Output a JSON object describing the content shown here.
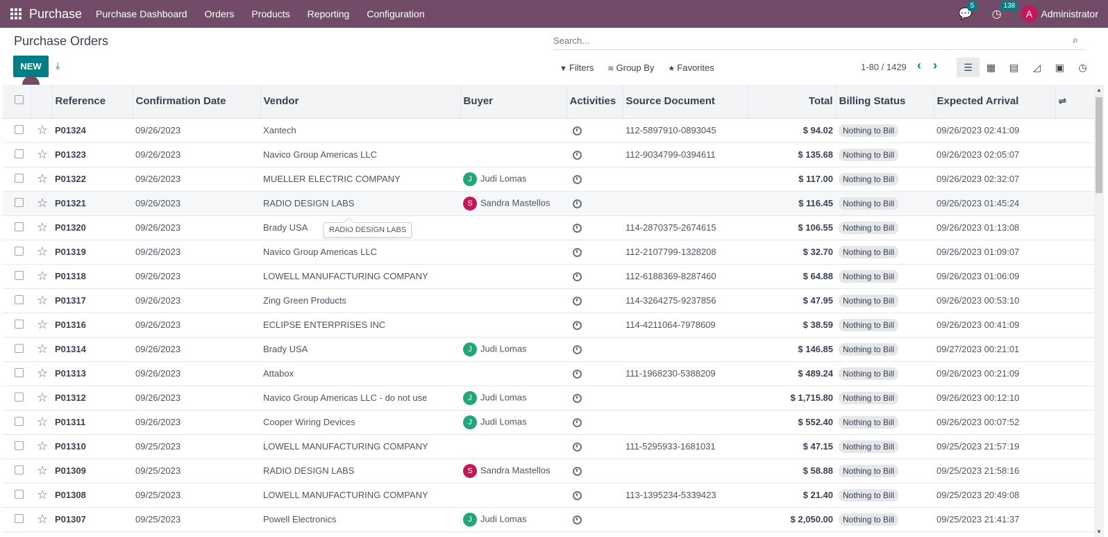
{
  "navbar": {
    "app_title": "Purchase",
    "menu": [
      "Purchase Dashboard",
      "Orders",
      "Products",
      "Reporting",
      "Configuration"
    ],
    "messages_count": "5",
    "activities_count": "138",
    "user_initial": "A",
    "user_name": "Administrator"
  },
  "control": {
    "title": "Purchase Orders",
    "new_label": "NEW",
    "search_placeholder": "Search...",
    "filters_label": "Filters",
    "groupby_label": "Group By",
    "favorites_label": "Favorites",
    "pager": "1-80 / 1429"
  },
  "table": {
    "headers": {
      "reference": "Reference",
      "confirmation_date": "Confirmation Date",
      "vendor": "Vendor",
      "buyer": "Buyer",
      "activities": "Activities",
      "source_document": "Source Document",
      "total": "Total",
      "billing_status": "Billing Status",
      "expected_arrival": "Expected Arrival"
    },
    "rows": [
      {
        "ref": "P01324",
        "date": "09/26/2023",
        "vendor": "Xantech",
        "buyer": "",
        "buyer_initial": "",
        "buyer_color": "",
        "source": "112-5897910-0893045",
        "total": "$ 94.02",
        "billing": "Nothing to Bill",
        "arrival": "09/26/2023 02:41:09"
      },
      {
        "ref": "P01323",
        "date": "09/26/2023",
        "vendor": "Navico Group Americas LLC",
        "buyer": "",
        "buyer_initial": "",
        "buyer_color": "",
        "source": "112-9034799-0394611",
        "total": "$ 135.68",
        "billing": "Nothing to Bill",
        "arrival": "09/26/2023 02:05:07"
      },
      {
        "ref": "P01322",
        "date": "09/26/2023",
        "vendor": "MUELLER ELECTRIC COMPANY",
        "buyer": "Judi Lomas",
        "buyer_initial": "J",
        "buyer_color": "#22A67B",
        "source": "",
        "total": "$ 117.00",
        "billing": "Nothing to Bill",
        "arrival": "09/26/2023 02:32:07"
      },
      {
        "ref": "P01321",
        "date": "09/26/2023",
        "vendor": "RADIO DESIGN LABS",
        "buyer": "Sandra Mastellos",
        "buyer_initial": "S",
        "buyer_color": "#C2185B",
        "source": "",
        "total": "$ 116.45",
        "billing": "Nothing to Bill",
        "arrival": "09/26/2023 01:45:24"
      },
      {
        "ref": "P01320",
        "date": "09/26/2023",
        "vendor": "Brady USA",
        "buyer": "",
        "buyer_initial": "",
        "buyer_color": "",
        "source": "114-2870375-2674615",
        "total": "$ 106.55",
        "billing": "Nothing to Bill",
        "arrival": "09/26/2023 01:13:08"
      },
      {
        "ref": "P01319",
        "date": "09/26/2023",
        "vendor": "Navico Group Americas LLC",
        "buyer": "",
        "buyer_initial": "",
        "buyer_color": "",
        "source": "112-2107799-1328208",
        "total": "$ 32.70",
        "billing": "Nothing to Bill",
        "arrival": "09/26/2023 01:09:07"
      },
      {
        "ref": "P01318",
        "date": "09/26/2023",
        "vendor": "LOWELL MANUFACTURING COMPANY",
        "buyer": "",
        "buyer_initial": "",
        "buyer_color": "",
        "source": "112-6188369-8287460",
        "total": "$ 64.88",
        "billing": "Nothing to Bill",
        "arrival": "09/26/2023 01:06:09"
      },
      {
        "ref": "P01317",
        "date": "09/26/2023",
        "vendor": "Zing Green Products",
        "buyer": "",
        "buyer_initial": "",
        "buyer_color": "",
        "source": "114-3264275-9237856",
        "total": "$ 47.95",
        "billing": "Nothing to Bill",
        "arrival": "09/26/2023 00:53:10"
      },
      {
        "ref": "P01316",
        "date": "09/26/2023",
        "vendor": "ECLIPSE ENTERPRISES INC",
        "buyer": "",
        "buyer_initial": "",
        "buyer_color": "",
        "source": "114-4211064-7978609",
        "total": "$ 38.59",
        "billing": "Nothing to Bill",
        "arrival": "09/26/2023 00:41:09"
      },
      {
        "ref": "P01314",
        "date": "09/26/2023",
        "vendor": "Brady USA",
        "buyer": "Judi Lomas",
        "buyer_initial": "J",
        "buyer_color": "#22A67B",
        "source": "",
        "total": "$ 146.85",
        "billing": "Nothing to Bill",
        "arrival": "09/27/2023 00:21:01"
      },
      {
        "ref": "P01313",
        "date": "09/26/2023",
        "vendor": "Attabox",
        "buyer": "",
        "buyer_initial": "",
        "buyer_color": "",
        "source": "111-1968230-5388209",
        "total": "$ 489.24",
        "billing": "Nothing to Bill",
        "arrival": "09/26/2023 00:21:09"
      },
      {
        "ref": "P01312",
        "date": "09/26/2023",
        "vendor": "Navico Group Americas LLC - do not use",
        "buyer": "Judi Lomas",
        "buyer_initial": "J",
        "buyer_color": "#22A67B",
        "source": "",
        "total": "$ 1,715.80",
        "billing": "Nothing to Bill",
        "arrival": "09/26/2023 00:12:10"
      },
      {
        "ref": "P01311",
        "date": "09/26/2023",
        "vendor": "Cooper Wiring Devices",
        "buyer": "Judi Lomas",
        "buyer_initial": "J",
        "buyer_color": "#22A67B",
        "source": "",
        "total": "$ 552.40",
        "billing": "Nothing to Bill",
        "arrival": "09/26/2023 00:07:52"
      },
      {
        "ref": "P01310",
        "date": "09/25/2023",
        "vendor": "LOWELL MANUFACTURING COMPANY",
        "buyer": "",
        "buyer_initial": "",
        "buyer_color": "",
        "source": "111-5295933-1681031",
        "total": "$ 47.15",
        "billing": "Nothing to Bill",
        "arrival": "09/25/2023 21:57:19"
      },
      {
        "ref": "P01309",
        "date": "09/25/2023",
        "vendor": "RADIO DESIGN LABS",
        "buyer": "Sandra Mastellos",
        "buyer_initial": "S",
        "buyer_color": "#C2185B",
        "source": "",
        "total": "$ 58.88",
        "billing": "Nothing to Bill",
        "arrival": "09/25/2023 21:58:16"
      },
      {
        "ref": "P01308",
        "date": "09/25/2023",
        "vendor": "LOWELL MANUFACTURING COMPANY",
        "buyer": "",
        "buyer_initial": "",
        "buyer_color": "",
        "source": "113-1395234-5339423",
        "total": "$ 21.40",
        "billing": "Nothing to Bill",
        "arrival": "09/25/2023 20:49:08"
      },
      {
        "ref": "P01307",
        "date": "09/25/2023",
        "vendor": "Powell Electronics",
        "buyer": "Judi Lomas",
        "buyer_initial": "J",
        "buyer_color": "#22A67B",
        "source": "",
        "total": "$ 2,050.00",
        "billing": "Nothing to Bill",
        "arrival": "09/25/2023 21:41:37"
      }
    ]
  },
  "tooltip": {
    "text": "RADIO DESIGN LABS"
  },
  "colors": {
    "brand": "#714B67",
    "accent": "#017E84"
  }
}
